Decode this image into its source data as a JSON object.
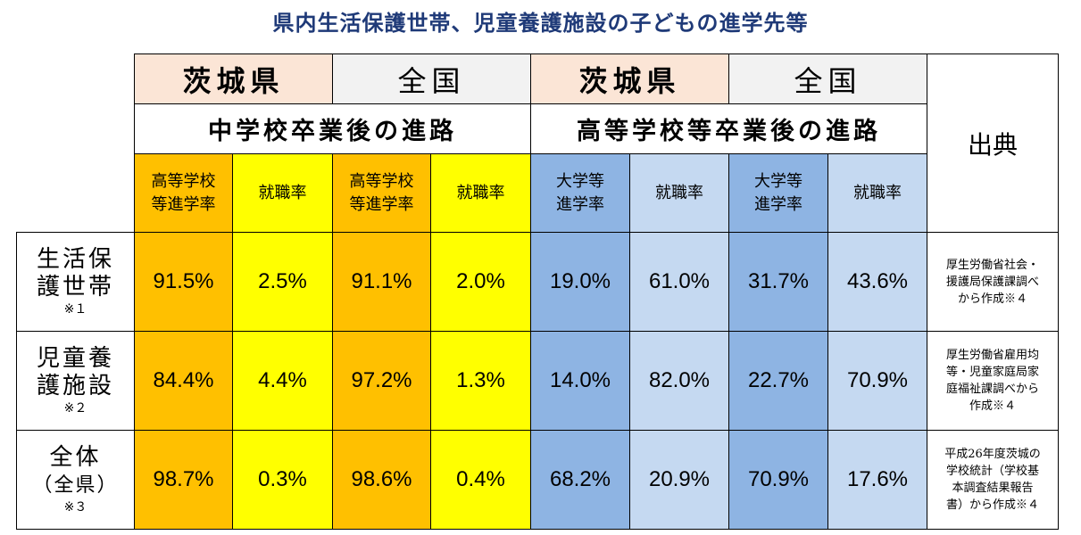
{
  "title": "県内生活保護世帯、児童養護施設の子どもの進学先等",
  "header": {
    "region_ibaraki_1": "茨城県",
    "region_national_1": "全国",
    "region_ibaraki_2": "茨城県",
    "region_national_2": "全国",
    "section_junior_high": "中学校卒業後の進路",
    "section_high_school": "高等学校等卒業後の進路",
    "source": "出典",
    "sub_jhs_ibaraki_adv_1": "高等学校",
    "sub_jhs_ibaraki_adv_2": "等進学率",
    "sub_jhs_ibaraki_emp": "就職率",
    "sub_jhs_national_adv_1": "高等学校",
    "sub_jhs_national_adv_2": "等進学率",
    "sub_jhs_national_emp": "就職率",
    "sub_hs_ibaraki_adv_1": "大学等",
    "sub_hs_ibaraki_adv_2": "進学率",
    "sub_hs_ibaraki_emp": "就職率",
    "sub_hs_national_adv_1": "大学等",
    "sub_hs_national_adv_2": "進学率",
    "sub_hs_national_emp": "就職率"
  },
  "rows": [
    {
      "label_1": "生活保",
      "label_2": "護世帯",
      "note": "※１",
      "values": [
        "91.5%",
        "2.5%",
        "91.1%",
        "2.0%",
        "19.0%",
        "61.0%",
        "31.7%",
        "43.6%"
      ],
      "cite_1": "厚生労働省社会・",
      "cite_2": "援護局保護課調べ",
      "cite_3": "から作成※４",
      "cite_4": ""
    },
    {
      "label_1": "児童養",
      "label_2": "護施設",
      "note": "※２",
      "values": [
        "84.4%",
        "4.4%",
        "97.2%",
        "1.3%",
        "14.0%",
        "82.0%",
        "22.7%",
        "70.9%"
      ],
      "cite_1": "厚生労働省雇用均",
      "cite_2": "等・児童家庭局家",
      "cite_3": "庭福祉課調べから",
      "cite_4": "作成※４"
    },
    {
      "label_1": "全体",
      "label_2": "（全県）",
      "note": "※３",
      "values": [
        "98.7%",
        "0.3%",
        "98.6%",
        "0.4%",
        "68.2%",
        "20.9%",
        "70.9%",
        "17.6%"
      ],
      "cite_1": "平成26年度茨城の",
      "cite_2": "学校統計（学校基",
      "cite_3": "本調査結果報告",
      "cite_4": "書）から作成※４"
    }
  ],
  "colors": {
    "title": "#1f3a78",
    "ibaraki_header": "#fbe5d6",
    "national_header": "#f2f2f2",
    "jhs_advance": "#ffc000",
    "jhs_employment": "#ffff00",
    "hs_advance": "#8eb4e3",
    "hs_employment": "#c5d9f1"
  }
}
